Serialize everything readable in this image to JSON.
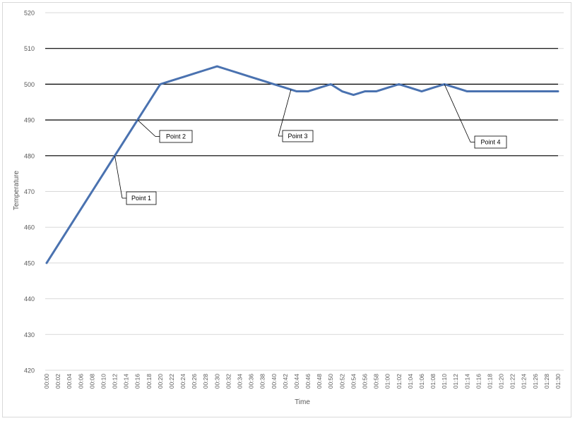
{
  "chart_data": {
    "type": "line",
    "title": "",
    "xlabel": "Time",
    "ylabel": "Temperature",
    "ylim": [
      420,
      520
    ],
    "y_ticks": [
      420,
      430,
      440,
      450,
      460,
      470,
      480,
      490,
      500,
      510,
      520
    ],
    "x_ticks": [
      "00:00",
      "00:02",
      "00:04",
      "00:06",
      "00:08",
      "00:10",
      "00:12",
      "00:14",
      "00:16",
      "00:18",
      "00:20",
      "00:22",
      "00:24",
      "00:26",
      "00:28",
      "00:30",
      "00:32",
      "00:34",
      "00:36",
      "00:38",
      "00:40",
      "00:42",
      "00:44",
      "00:46",
      "00:48",
      "00:50",
      "00:52",
      "00:54",
      "00:56",
      "00:58",
      "01:00",
      "01:02",
      "01:04",
      "01:06",
      "01:08",
      "01:10",
      "01:12",
      "01:14",
      "01:16",
      "01:18",
      "01:20",
      "01:22",
      "01:24",
      "01:26",
      "01:28",
      "01:30"
    ],
    "series": [
      {
        "color": "#4a72b0",
        "x": [
          "00:00",
          "00:02",
          "00:04",
          "00:06",
          "00:08",
          "00:10",
          "00:12",
          "00:14",
          "00:16",
          "00:18",
          "00:20",
          "00:22",
          "00:24",
          "00:26",
          "00:28",
          "00:30",
          "00:32",
          "00:34",
          "00:36",
          "00:38",
          "00:40",
          "00:42",
          "00:44",
          "00:46",
          "00:48",
          "00:50",
          "00:52",
          "00:54",
          "00:56",
          "00:58",
          "01:00",
          "01:02",
          "01:04",
          "01:06",
          "01:08",
          "01:10",
          "01:12",
          "01:14",
          "01:16",
          "01:18",
          "01:20",
          "01:22",
          "01:24",
          "01:26",
          "01:28",
          "01:30"
        ],
        "values": [
          450,
          455,
          460,
          465,
          470,
          475,
          480,
          485,
          490,
          495,
          500,
          501,
          502,
          503,
          504,
          505,
          504,
          503,
          502,
          501,
          500,
          499,
          498,
          498,
          499,
          500,
          498,
          497,
          498,
          498,
          499,
          500,
          499,
          498,
          499,
          500,
          499,
          498,
          498,
          498,
          498,
          498,
          498,
          498,
          498,
          498
        ]
      }
    ],
    "reference_lines": [
      {
        "value": 480,
        "color": "#000000"
      },
      {
        "value": 490,
        "color": "#000000"
      },
      {
        "value": 500,
        "color": "#000000"
      },
      {
        "value": 510,
        "color": "#000000"
      }
    ],
    "annotations": [
      {
        "label": "Point 1",
        "anchor_x": "00:12",
        "anchor_value": 480
      },
      {
        "label": "Point 2",
        "anchor_x": "00:16",
        "anchor_value": 490
      },
      {
        "label": "Point 3",
        "anchor_x": "00:43",
        "anchor_value": 498.5
      },
      {
        "label": "Point 4",
        "anchor_x": "01:10",
        "anchor_value": 500
      }
    ],
    "grid": true,
    "legend": "none"
  }
}
